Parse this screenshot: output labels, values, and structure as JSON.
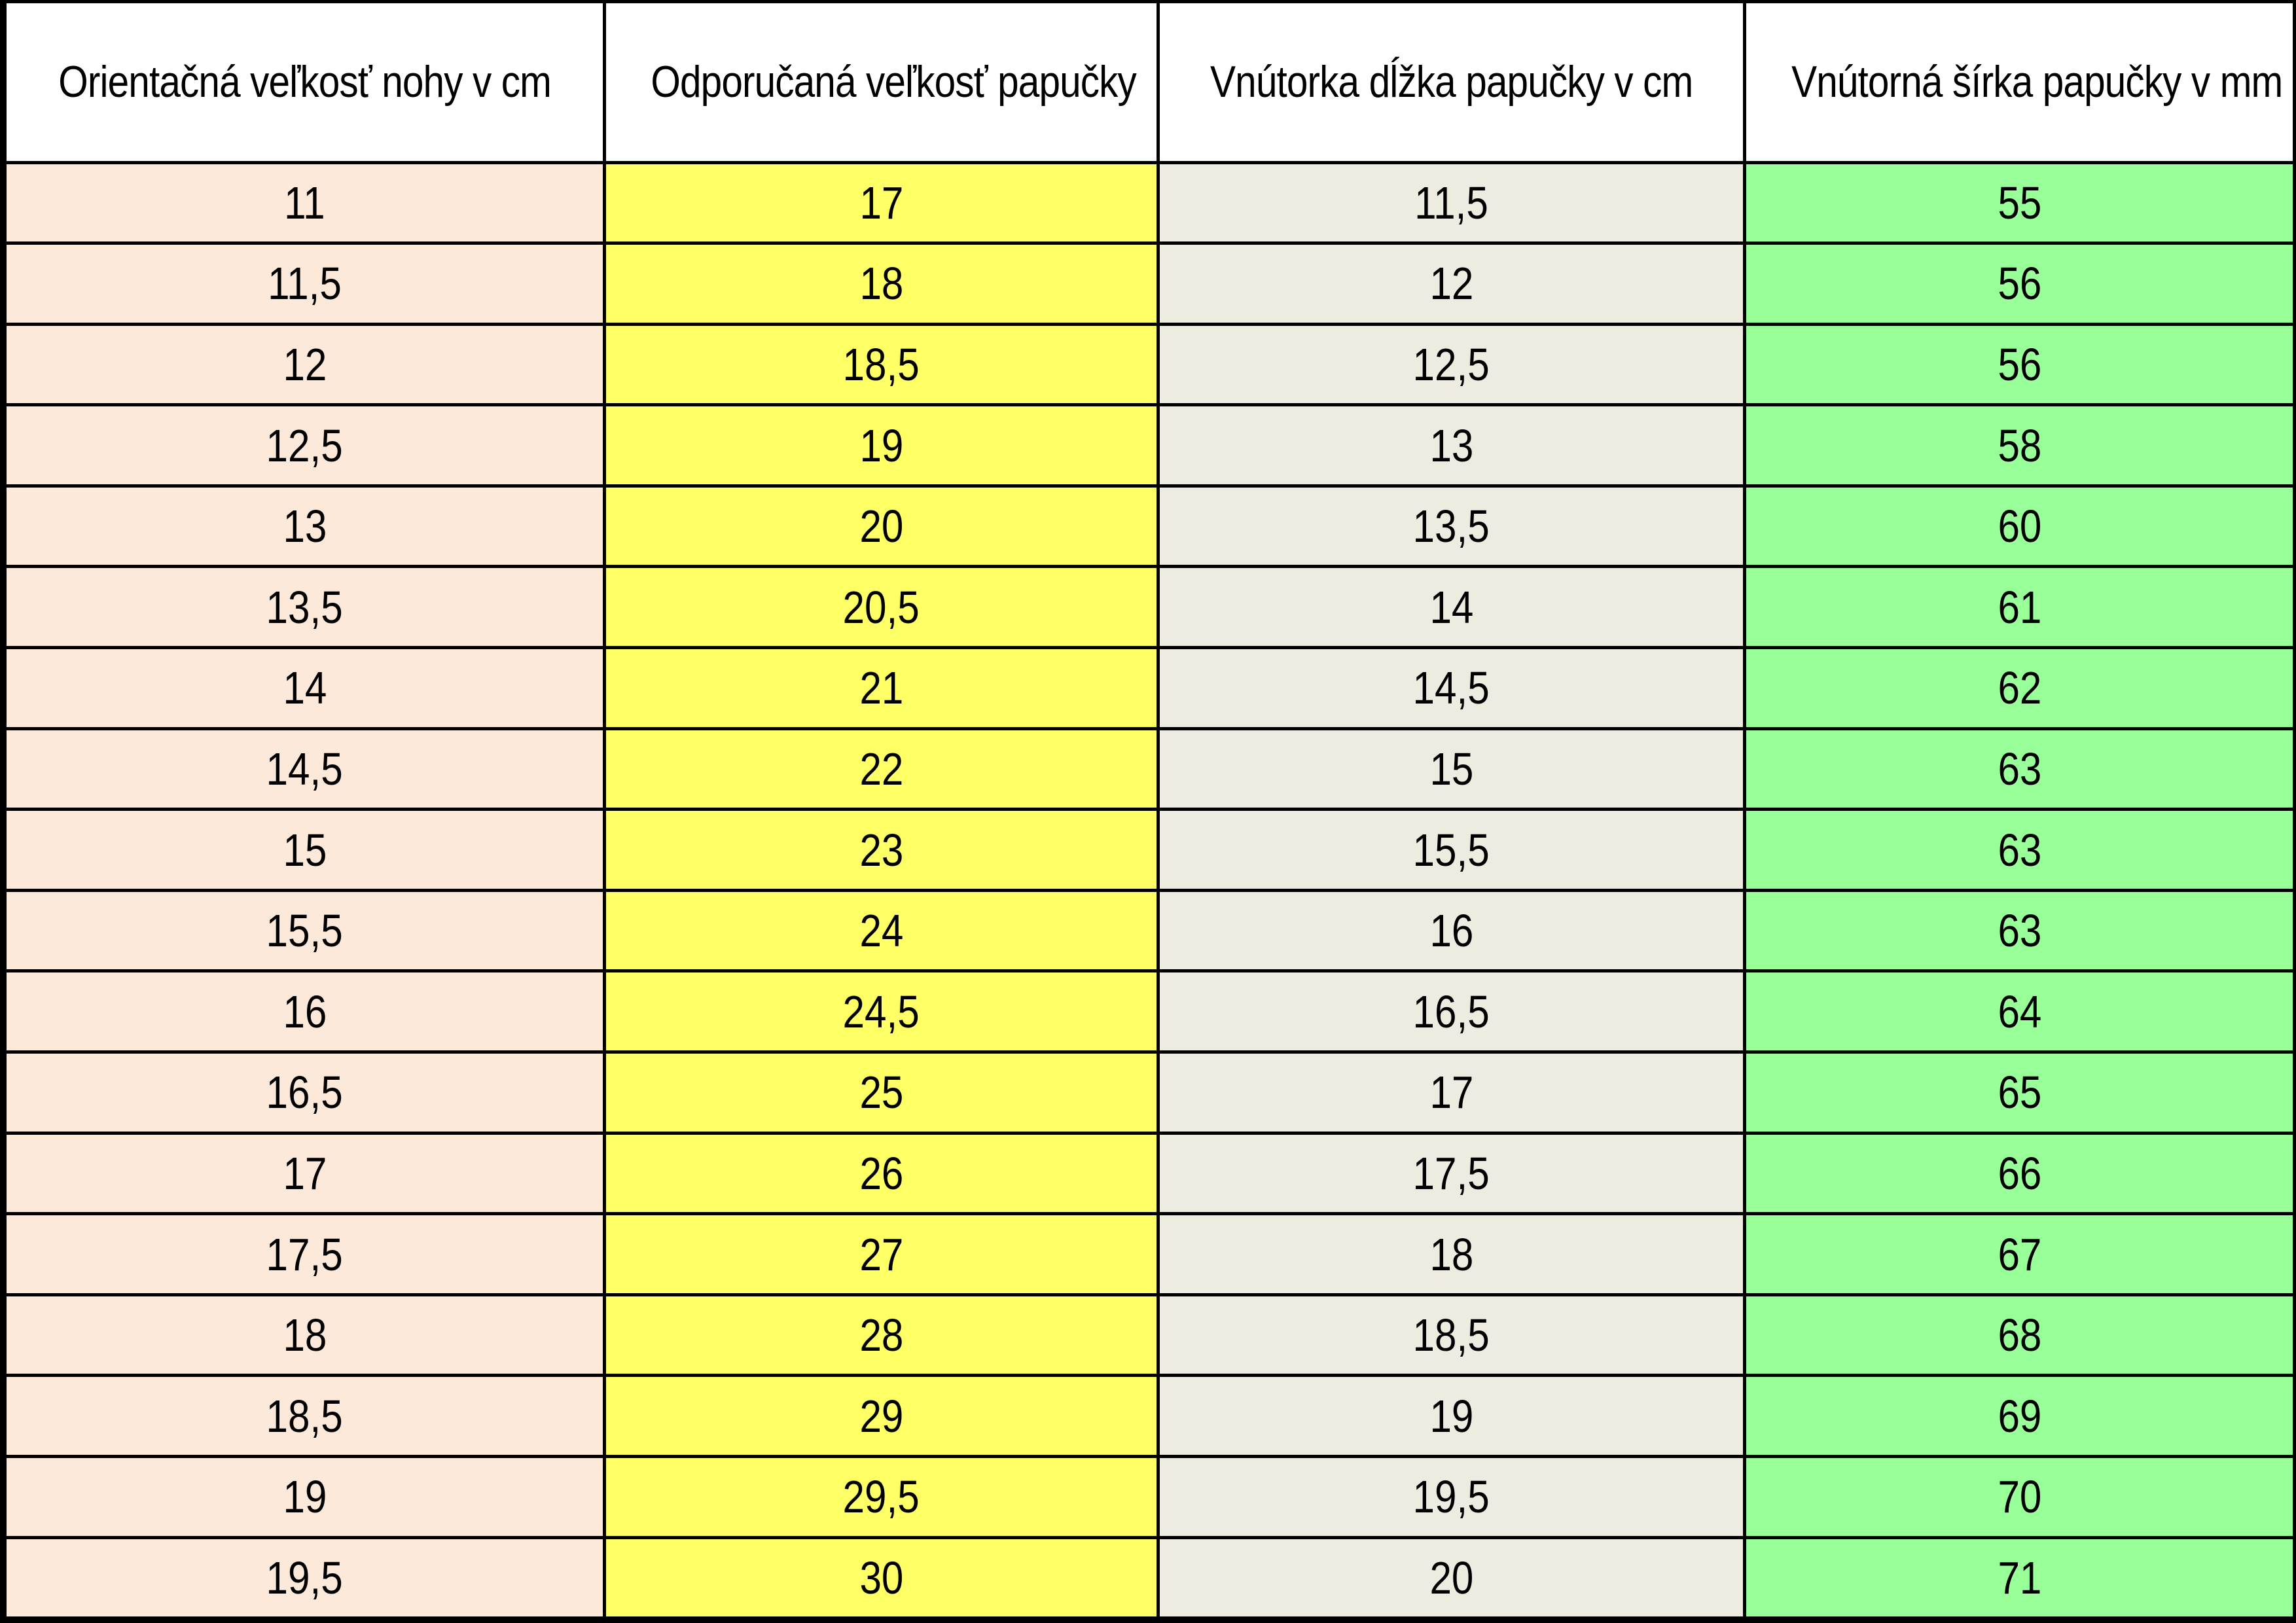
{
  "headers": [
    "Orientačná veľkosť nohy v cm",
    "Odporučaná veľkosť papučky",
    "Vnútorka dĺžka papučky v cm",
    "Vnútorná šírka papučky v mm"
  ],
  "rows": [
    [
      "11",
      "17",
      "11,5",
      "55"
    ],
    [
      "11,5",
      "18",
      "12",
      "56"
    ],
    [
      "12",
      "18,5",
      "12,5",
      "56"
    ],
    [
      "12,5",
      "19",
      "13",
      "58"
    ],
    [
      "13",
      "20",
      "13,5",
      "60"
    ],
    [
      "13,5",
      "20,5",
      "14",
      "61"
    ],
    [
      "14",
      "21",
      "14,5",
      "62"
    ],
    [
      "14,5",
      "22",
      "15",
      "63"
    ],
    [
      "15",
      "23",
      "15,5",
      "63"
    ],
    [
      "15,5",
      "24",
      "16",
      "63"
    ],
    [
      "16",
      "24,5",
      "16,5",
      "64"
    ],
    [
      "16,5",
      "25",
      "17",
      "65"
    ],
    [
      "17",
      "26",
      "17,5",
      "66"
    ],
    [
      "17,5",
      "27",
      "18",
      "67"
    ],
    [
      "18",
      "28",
      "18,5",
      "68"
    ],
    [
      "18,5",
      "29",
      "19",
      "69"
    ],
    [
      "19",
      "29,5",
      "19,5",
      "70"
    ],
    [
      "19,5",
      "30",
      "20",
      "71"
    ]
  ],
  "colors": {
    "foot_column": "#fde9d9",
    "recommended_column": "#ffff66",
    "length_column": "#eeece1",
    "width_column": "#99ff99"
  }
}
